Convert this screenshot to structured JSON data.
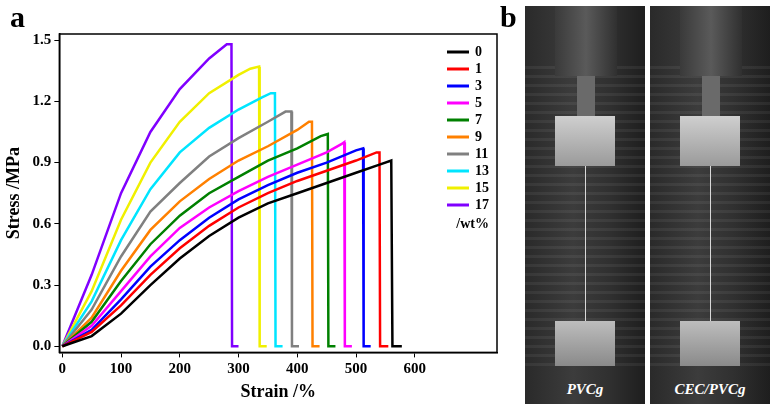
{
  "chart_data": {
    "type": "line",
    "panel": "a",
    "x_label": "Strain /%",
    "y_label": "Stress /MPa",
    "xlim": [
      -5,
      740
    ],
    "xticks": [
      0,
      100,
      200,
      300,
      400,
      500,
      600
    ],
    "ylim": [
      -0.03,
      1.53
    ],
    "yticks": [
      {
        "value": 0,
        "label": "0.0"
      },
      0.3,
      0.6,
      0.9,
      1.2,
      1.5
    ],
    "grid": false,
    "legend": "upper right",
    "annotations": [
      "/wt%"
    ],
    "series": [
      {
        "name": "0",
        "color": "#000000",
        "x": [
          0,
          50,
          100,
          150,
          200,
          250,
          300,
          350,
          400,
          450,
          500,
          540,
          560,
          562,
          578
        ],
        "values": [
          0,
          0.05,
          0.16,
          0.3,
          0.43,
          0.54,
          0.63,
          0.7,
          0.75,
          0.8,
          0.85,
          0.89,
          0.91,
          0,
          0
        ]
      },
      {
        "name": "1",
        "color": "#ff0000",
        "x": [
          0,
          50,
          100,
          150,
          200,
          250,
          300,
          350,
          400,
          450,
          500,
          535,
          540,
          541,
          555
        ],
        "values": [
          0,
          0.07,
          0.2,
          0.35,
          0.48,
          0.59,
          0.68,
          0.75,
          0.81,
          0.86,
          0.91,
          0.95,
          0.95,
          0,
          0
        ]
      },
      {
        "name": "3",
        "color": "#0000ff",
        "x": [
          0,
          50,
          100,
          150,
          200,
          250,
          300,
          350,
          400,
          450,
          500,
          512,
          513,
          525
        ],
        "values": [
          0,
          0.08,
          0.23,
          0.39,
          0.52,
          0.63,
          0.72,
          0.79,
          0.85,
          0.9,
          0.96,
          0.97,
          0,
          0
        ]
      },
      {
        "name": "5",
        "color": "#ff00ff",
        "x": [
          0,
          50,
          100,
          150,
          200,
          250,
          300,
          350,
          400,
          450,
          475,
          480,
          481,
          493
        ],
        "values": [
          0,
          0.1,
          0.27,
          0.44,
          0.58,
          0.68,
          0.76,
          0.83,
          0.89,
          0.95,
          0.99,
          1.0,
          0,
          0
        ]
      },
      {
        "name": "7",
        "color": "#008000",
        "x": [
          0,
          50,
          100,
          150,
          200,
          250,
          300,
          350,
          400,
          440,
          452,
          453,
          465
        ],
        "values": [
          0,
          0.12,
          0.32,
          0.5,
          0.64,
          0.75,
          0.83,
          0.91,
          0.97,
          1.03,
          1.04,
          0,
          0
        ]
      },
      {
        "name": "9",
        "color": "#ff8000",
        "x": [
          0,
          50,
          100,
          150,
          200,
          250,
          300,
          350,
          400,
          420,
          425,
          426,
          438
        ],
        "values": [
          0,
          0.14,
          0.37,
          0.57,
          0.71,
          0.82,
          0.91,
          0.98,
          1.06,
          1.1,
          1.1,
          0,
          0
        ]
      },
      {
        "name": "11",
        "color": "#808080",
        "x": [
          0,
          50,
          100,
          150,
          200,
          250,
          300,
          350,
          380,
          390,
          391,
          403
        ],
        "values": [
          0,
          0.18,
          0.44,
          0.66,
          0.8,
          0.93,
          1.02,
          1.1,
          1.15,
          1.15,
          0,
          0
        ]
      },
      {
        "name": "13",
        "color": "#00e5ff",
        "x": [
          0,
          50,
          100,
          150,
          200,
          250,
          300,
          340,
          355,
          362,
          363,
          375
        ],
        "values": [
          0,
          0.22,
          0.52,
          0.77,
          0.95,
          1.07,
          1.16,
          1.22,
          1.24,
          1.24,
          0,
          0
        ]
      },
      {
        "name": "15",
        "color": "#f0f000",
        "x": [
          0,
          50,
          100,
          150,
          200,
          250,
          300,
          320,
          335,
          336,
          348
        ],
        "values": [
          0,
          0.27,
          0.62,
          0.9,
          1.1,
          1.24,
          1.33,
          1.36,
          1.37,
          0,
          0
        ]
      },
      {
        "name": "17",
        "color": "#8000ff",
        "x": [
          0,
          50,
          100,
          150,
          200,
          250,
          280,
          288,
          289,
          300
        ],
        "values": [
          0,
          0.35,
          0.75,
          1.05,
          1.26,
          1.41,
          1.48,
          1.48,
          0,
          0
        ]
      }
    ]
  },
  "photos": {
    "panel": "b",
    "labels": [
      "PVCg",
      "CEC/PVCg"
    ]
  }
}
